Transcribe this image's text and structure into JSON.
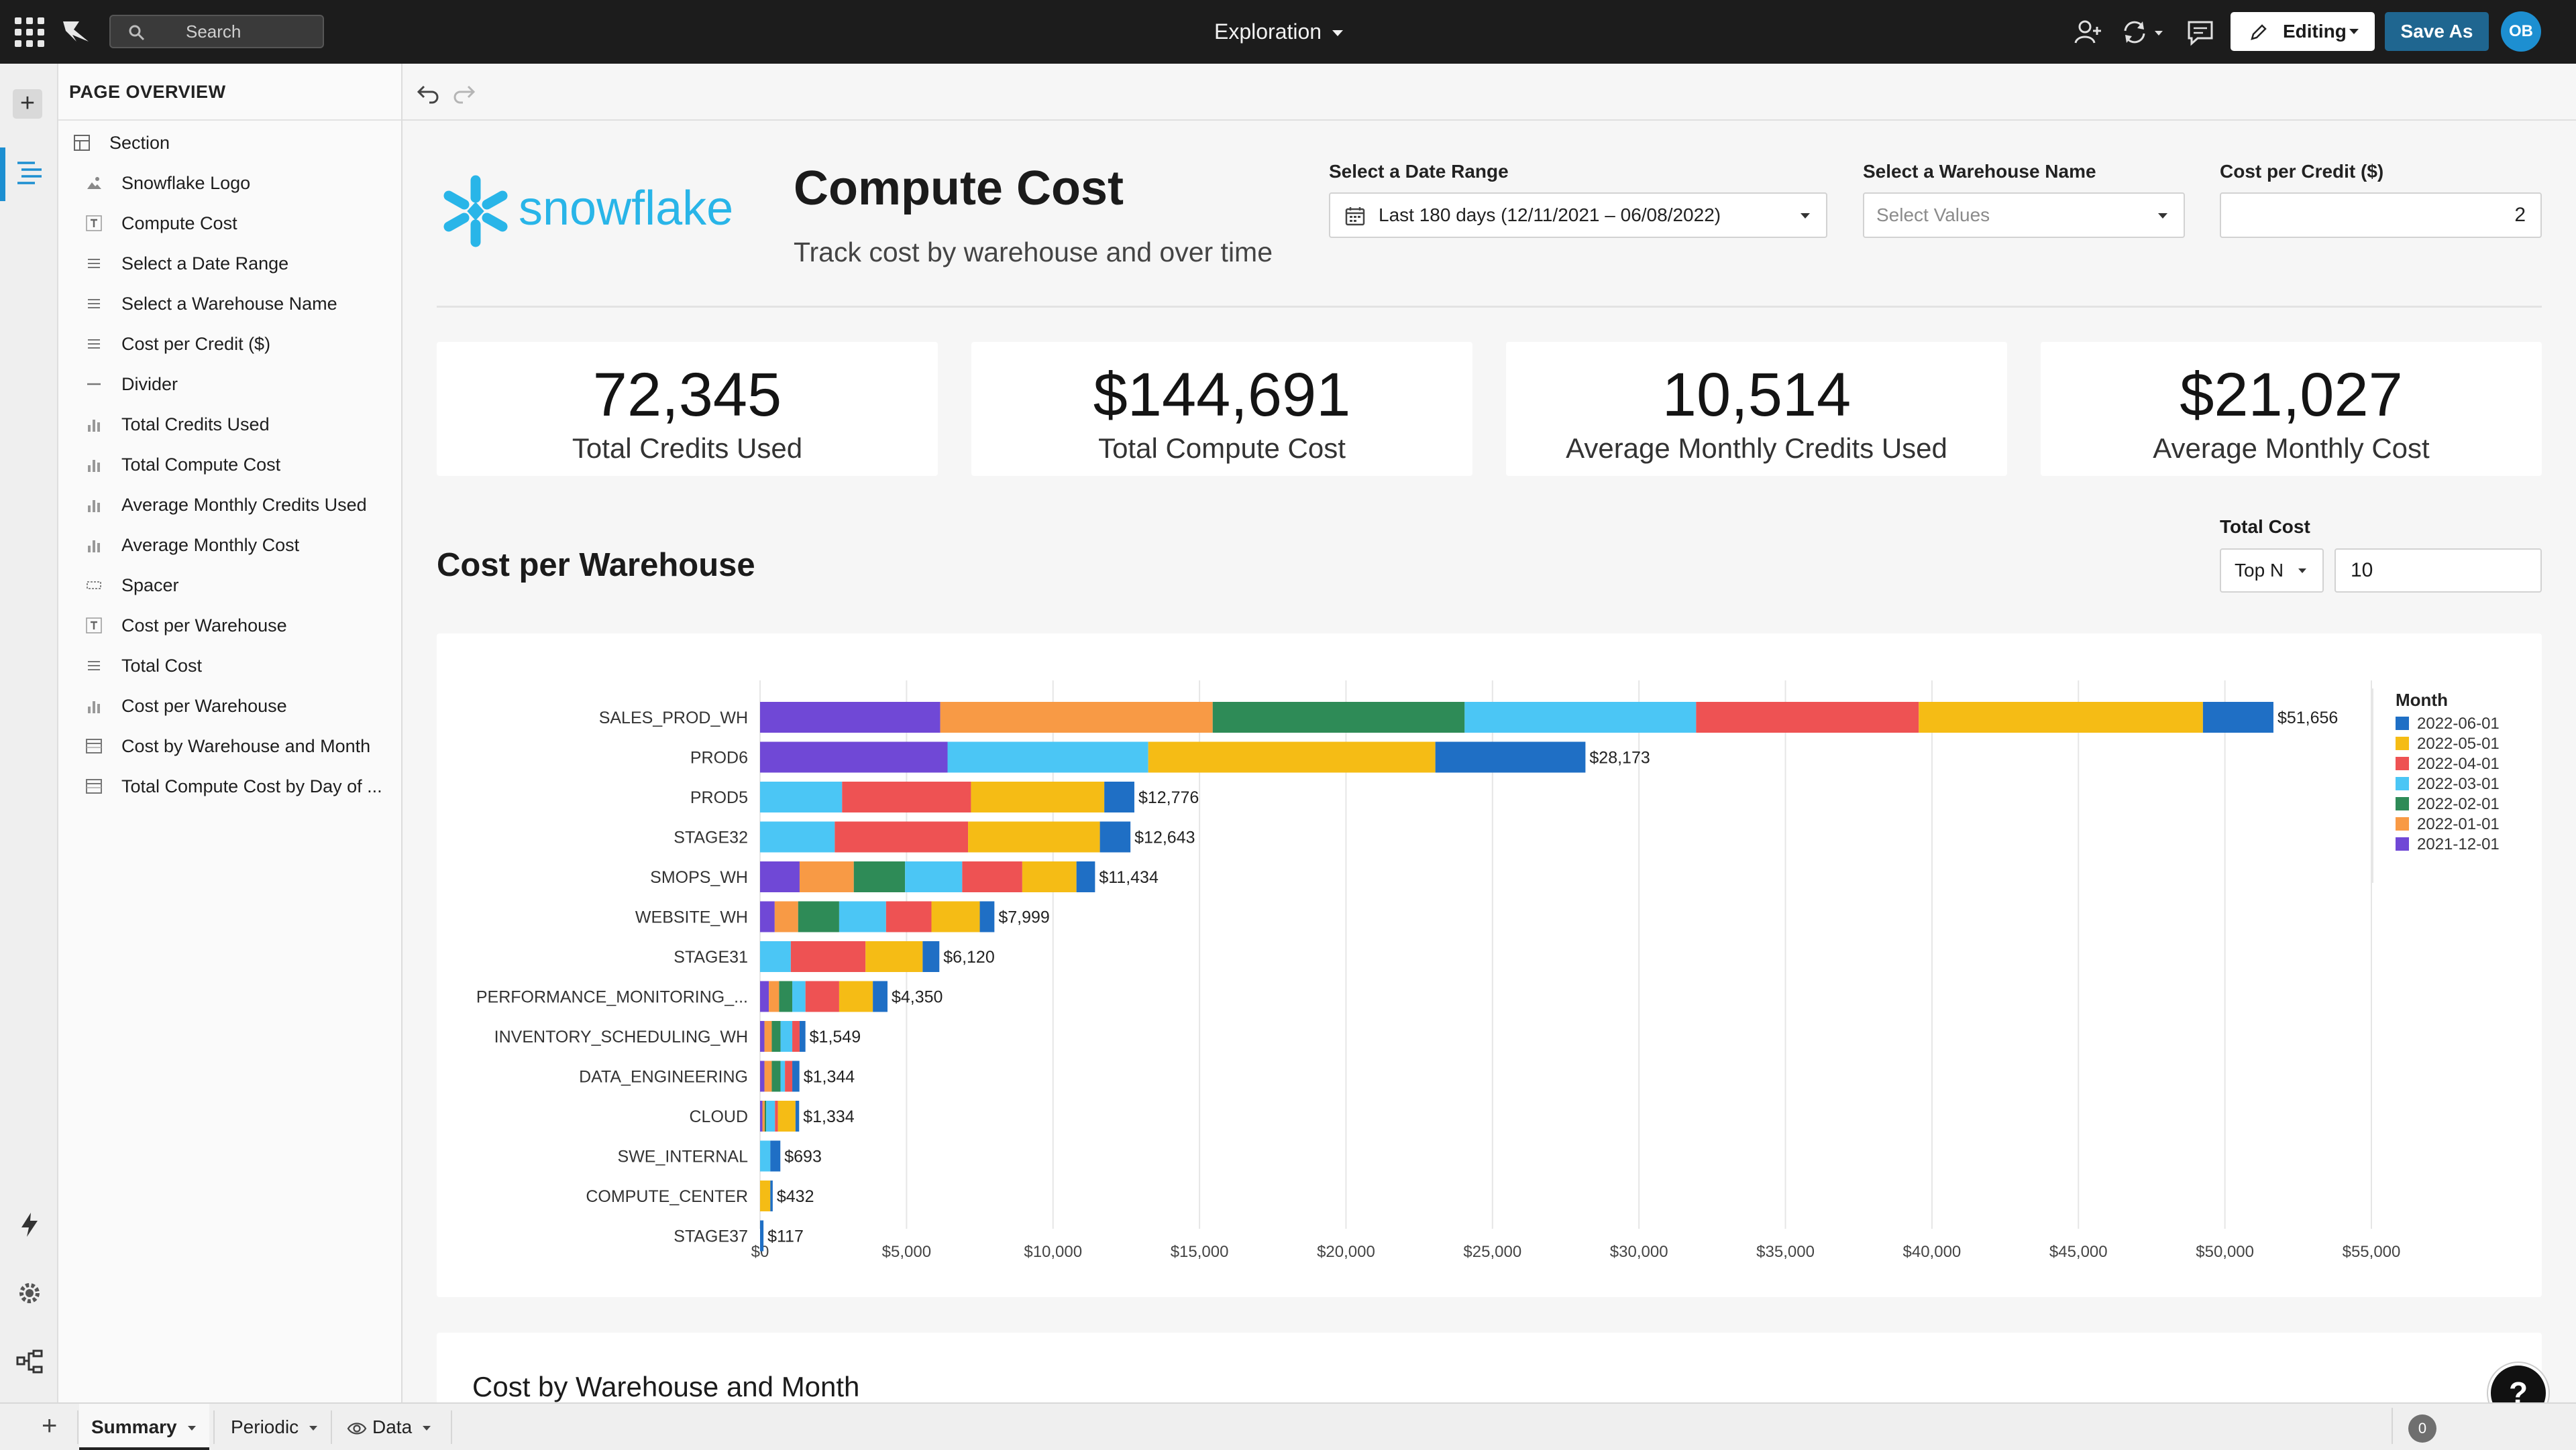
{
  "topbar": {
    "search_placeholder": "Search",
    "document_title": "Exploration",
    "editing_label": "Editing",
    "save_as_label": "Save As",
    "avatar_initials": "OB"
  },
  "panel": {
    "title": "PAGE OVERVIEW",
    "items": [
      {
        "label": "Section",
        "icon": "layout-icon"
      },
      {
        "label": "Snowflake Logo",
        "icon": "image-icon"
      },
      {
        "label": "Compute Cost",
        "icon": "text-icon"
      },
      {
        "label": "Select a Date Range",
        "icon": "control-icon"
      },
      {
        "label": "Select a Warehouse Name",
        "icon": "control-icon"
      },
      {
        "label": "Cost per Credit ($)",
        "icon": "control-icon"
      },
      {
        "label": "Divider",
        "icon": "divider-icon"
      },
      {
        "label": "Total Credits Used",
        "icon": "chart-icon"
      },
      {
        "label": "Total Compute Cost",
        "icon": "chart-icon"
      },
      {
        "label": "Average Monthly Credits Used",
        "icon": "chart-icon"
      },
      {
        "label": "Average Monthly Cost",
        "icon": "chart-icon"
      },
      {
        "label": "Spacer",
        "icon": "spacer-icon"
      },
      {
        "label": "Cost per Warehouse",
        "icon": "text-icon"
      },
      {
        "label": "Total Cost",
        "icon": "control-icon"
      },
      {
        "label": "Cost per Warehouse",
        "icon": "chart-icon"
      },
      {
        "label": "Cost by Warehouse and Month",
        "icon": "table-icon"
      },
      {
        "label": "Total Compute Cost by Day of ...",
        "icon": "table-icon"
      }
    ]
  },
  "header": {
    "title": "Compute Cost",
    "subtitle": "Track cost by warehouse and over time",
    "logo_text": "snowflake"
  },
  "controls": {
    "date_range": {
      "label": "Select a Date Range",
      "value": "Last 180 days (12/11/2021 – 06/08/2022)"
    },
    "warehouse": {
      "label": "Select a Warehouse Name",
      "placeholder": "Select Values"
    },
    "cost_per_credit": {
      "label": "Cost per Credit ($)",
      "value": "2"
    }
  },
  "kpis": [
    {
      "value": "72,345",
      "label": "Total Credits Used"
    },
    {
      "value": "$144,691",
      "label": "Total Compute Cost"
    },
    {
      "value": "10,514",
      "label": "Average Monthly Credits Used"
    },
    {
      "value": "$21,027",
      "label": "Average Monthly Cost"
    }
  ],
  "cost_section": {
    "title": "Cost per Warehouse",
    "filter_label": "Total Cost",
    "filter_mode": "Top N",
    "filter_value": "10"
  },
  "chart_data": {
    "type": "bar",
    "orientation": "horizontal",
    "stacked": true,
    "categories": [
      "SALES_PROD_WH",
      "PROD6",
      "PROD5",
      "STAGE32",
      "SMOPS_WH",
      "WEBSITE_WH",
      "STAGE31",
      "PERFORMANCE_MONITORING_...",
      "INVENTORY_SCHEDULING_WH",
      "DATA_ENGINEERING",
      "CLOUD",
      "SWE_INTERNAL",
      "COMPUTE_CENTER",
      "STAGE37"
    ],
    "totals": [
      51656,
      28173,
      12776,
      12643,
      11434,
      7999,
      6120,
      4350,
      1549,
      1344,
      1334,
      693,
      432,
      117
    ],
    "total_labels": [
      "$51,656",
      "$28,173",
      "$12,776",
      "$12,643",
      "$11,434",
      "$7,999",
      "$6,120",
      "$4,350",
      "$1,549",
      "$1,344",
      "$1,334",
      "$693",
      "$432",
      "$117"
    ],
    "series": [
      {
        "name": "2021-12-01",
        "color": "#7048d6",
        "values": [
          6150,
          6400,
          0,
          0,
          1350,
          500,
          0,
          300,
          150,
          150,
          80,
          0,
          0,
          0
        ]
      },
      {
        "name": "2022-01-01",
        "color": "#f89a45",
        "values": [
          9300,
          0,
          0,
          0,
          1850,
          800,
          0,
          350,
          250,
          250,
          80,
          0,
          0,
          0
        ]
      },
      {
        "name": "2022-02-01",
        "color": "#2e8b57",
        "values": [
          8600,
          0,
          0,
          0,
          1750,
          1400,
          0,
          450,
          300,
          300,
          50,
          0,
          0,
          0
        ]
      },
      {
        "name": "2022-03-01",
        "color": "#4bc6f5",
        "values": [
          7900,
          6850,
          2800,
          2550,
          1950,
          1600,
          1050,
          450,
          400,
          150,
          300,
          350,
          0,
          0
        ]
      },
      {
        "name": "2022-04-01",
        "color": "#ee5253",
        "values": [
          7600,
          0,
          4400,
          4550,
          2050,
          1550,
          2550,
          1150,
          250,
          250,
          100,
          0,
          0,
          0
        ]
      },
      {
        "name": "2022-05-01",
        "color": "#f5bc15",
        "values": [
          9700,
          9800,
          4550,
          4500,
          1850,
          1650,
          1950,
          1150,
          0,
          0,
          600,
          0,
          350,
          0
        ]
      },
      {
        "name": "2022-06-01",
        "color": "#1f6fc5",
        "values": [
          2406,
          5123,
          1026,
          1043,
          634,
          499,
          570,
          500,
          199,
          244,
          124,
          343,
          82,
          117
        ]
      }
    ],
    "legend_order": [
      "2022-06-01",
      "2022-05-01",
      "2022-04-01",
      "2022-03-01",
      "2022-02-01",
      "2022-01-01",
      "2021-12-01"
    ],
    "legend_title": "Month",
    "legend_position": "right",
    "xlim": [
      0,
      55000
    ],
    "x_ticks": [
      0,
      5000,
      10000,
      15000,
      20000,
      25000,
      30000,
      35000,
      40000,
      45000,
      50000,
      55000
    ],
    "x_tick_labels": [
      "$0",
      "$5,000",
      "$10,000",
      "$15,000",
      "$20,000",
      "$25,000",
      "$30,000",
      "$35,000",
      "$40,000",
      "$45,000",
      "$50,000",
      "$55,000"
    ],
    "grid": true
  },
  "bottom_section": {
    "title": "Cost by Warehouse and Month"
  },
  "tabs": [
    {
      "label": "Summary",
      "active": true
    },
    {
      "label": "Periodic",
      "active": false
    },
    {
      "label": "Data",
      "active": false
    }
  ],
  "notifications_count": "0",
  "help_label": "?"
}
